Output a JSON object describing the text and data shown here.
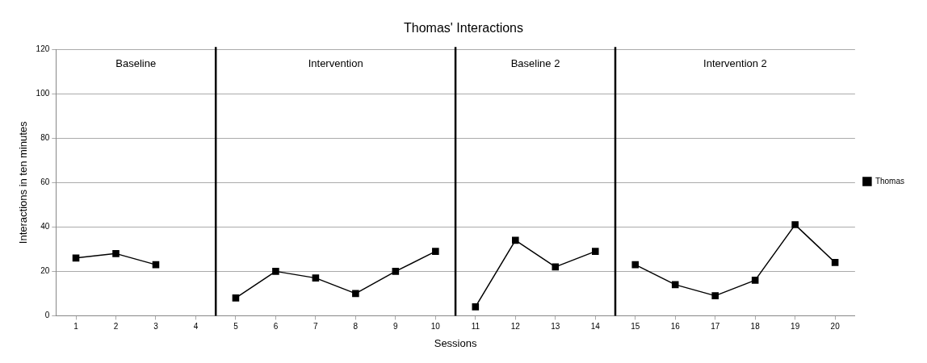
{
  "chart_data": {
    "type": "line",
    "title": "Thomas' Interactions",
    "xlabel": "Sessions",
    "ylabel": "Interactions in ten minutes",
    "x": [
      1,
      2,
      3,
      4,
      5,
      6,
      7,
      8,
      9,
      10,
      11,
      12,
      13,
      14,
      15,
      16,
      17,
      18,
      19,
      20
    ],
    "series": [
      {
        "name": "Thomas",
        "color": "#000000",
        "values": [
          26,
          28,
          23,
          null,
          8,
          20,
          17,
          10,
          20,
          29,
          4,
          34,
          22,
          29,
          23,
          14,
          9,
          16,
          41,
          24
        ]
      }
    ],
    "xlim": [
      0.5,
      20.5
    ],
    "xticks": [
      1,
      2,
      3,
      4,
      5,
      6,
      7,
      8,
      9,
      10,
      11,
      12,
      13,
      14,
      15,
      16,
      17,
      18,
      19,
      20
    ],
    "ylim": [
      0,
      120
    ],
    "yticks": [
      0,
      20,
      40,
      60,
      80,
      100,
      120
    ],
    "ref_lines": [
      {
        "axis": "x",
        "value": 4.5,
        "color": "#000000"
      },
      {
        "axis": "x",
        "value": 10.5,
        "color": "#000000"
      },
      {
        "axis": "x",
        "value": 14.5,
        "color": "#000000"
      }
    ],
    "annotations": [
      "Baseline",
      "Intervention",
      "Baseline 2",
      "Intervention 2"
    ],
    "grid": "y",
    "legend": "right",
    "marker": "square",
    "line_style": "solid"
  }
}
